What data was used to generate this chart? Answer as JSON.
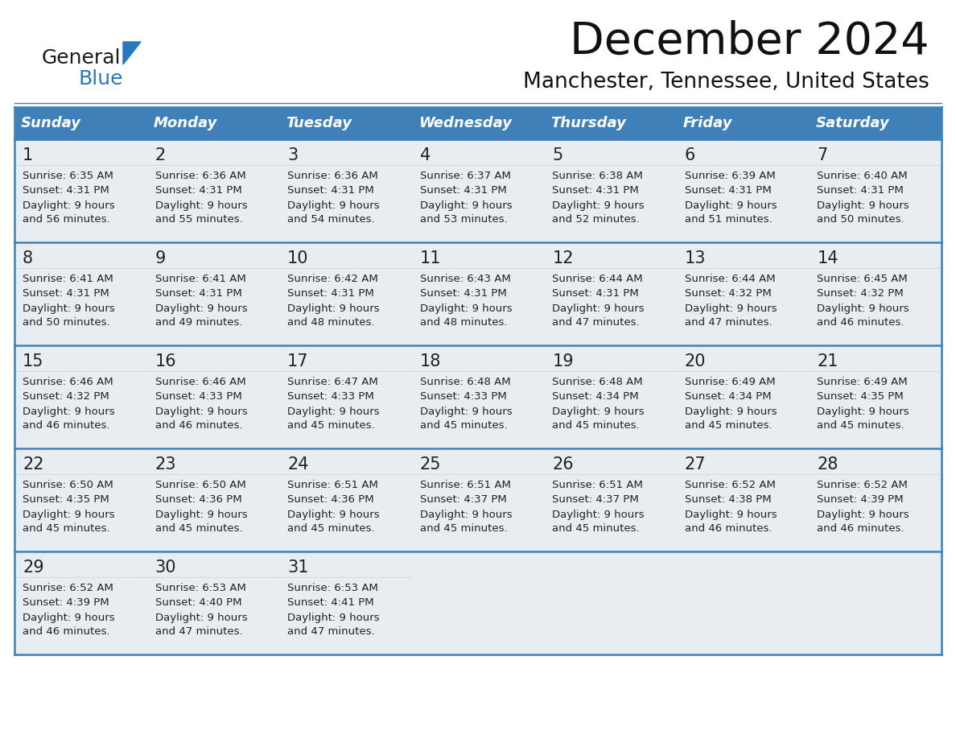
{
  "title": "December 2024",
  "subtitle": "Manchester, Tennessee, United States",
  "header_color": "#4080b8",
  "header_text_color": "#ffffff",
  "cell_day_bg": "#e8edf2",
  "cell_text_bg": "#ffffff",
  "row_separator_color": "#4080b8",
  "text_color": "#222222",
  "days_of_week": [
    "Sunday",
    "Monday",
    "Tuesday",
    "Wednesday",
    "Thursday",
    "Friday",
    "Saturday"
  ],
  "weeks": [
    [
      {
        "day": "1",
        "sunrise": "6:35 AM",
        "sunset": "4:31 PM",
        "daylight_h": "9 hours",
        "daylight_m": "and 56 minutes."
      },
      {
        "day": "2",
        "sunrise": "6:36 AM",
        "sunset": "4:31 PM",
        "daylight_h": "9 hours",
        "daylight_m": "and 55 minutes."
      },
      {
        "day": "3",
        "sunrise": "6:36 AM",
        "sunset": "4:31 PM",
        "daylight_h": "9 hours",
        "daylight_m": "and 54 minutes."
      },
      {
        "day": "4",
        "sunrise": "6:37 AM",
        "sunset": "4:31 PM",
        "daylight_h": "9 hours",
        "daylight_m": "and 53 minutes."
      },
      {
        "day": "5",
        "sunrise": "6:38 AM",
        "sunset": "4:31 PM",
        "daylight_h": "9 hours",
        "daylight_m": "and 52 minutes."
      },
      {
        "day": "6",
        "sunrise": "6:39 AM",
        "sunset": "4:31 PM",
        "daylight_h": "9 hours",
        "daylight_m": "and 51 minutes."
      },
      {
        "day": "7",
        "sunrise": "6:40 AM",
        "sunset": "4:31 PM",
        "daylight_h": "9 hours",
        "daylight_m": "and 50 minutes."
      }
    ],
    [
      {
        "day": "8",
        "sunrise": "6:41 AM",
        "sunset": "4:31 PM",
        "daylight_h": "9 hours",
        "daylight_m": "and 50 minutes."
      },
      {
        "day": "9",
        "sunrise": "6:41 AM",
        "sunset": "4:31 PM",
        "daylight_h": "9 hours",
        "daylight_m": "and 49 minutes."
      },
      {
        "day": "10",
        "sunrise": "6:42 AM",
        "sunset": "4:31 PM",
        "daylight_h": "9 hours",
        "daylight_m": "and 48 minutes."
      },
      {
        "day": "11",
        "sunrise": "6:43 AM",
        "sunset": "4:31 PM",
        "daylight_h": "9 hours",
        "daylight_m": "and 48 minutes."
      },
      {
        "day": "12",
        "sunrise": "6:44 AM",
        "sunset": "4:31 PM",
        "daylight_h": "9 hours",
        "daylight_m": "and 47 minutes."
      },
      {
        "day": "13",
        "sunrise": "6:44 AM",
        "sunset": "4:32 PM",
        "daylight_h": "9 hours",
        "daylight_m": "and 47 minutes."
      },
      {
        "day": "14",
        "sunrise": "6:45 AM",
        "sunset": "4:32 PM",
        "daylight_h": "9 hours",
        "daylight_m": "and 46 minutes."
      }
    ],
    [
      {
        "day": "15",
        "sunrise": "6:46 AM",
        "sunset": "4:32 PM",
        "daylight_h": "9 hours",
        "daylight_m": "and 46 minutes."
      },
      {
        "day": "16",
        "sunrise": "6:46 AM",
        "sunset": "4:33 PM",
        "daylight_h": "9 hours",
        "daylight_m": "and 46 minutes."
      },
      {
        "day": "17",
        "sunrise": "6:47 AM",
        "sunset": "4:33 PM",
        "daylight_h": "9 hours",
        "daylight_m": "and 45 minutes."
      },
      {
        "day": "18",
        "sunrise": "6:48 AM",
        "sunset": "4:33 PM",
        "daylight_h": "9 hours",
        "daylight_m": "and 45 minutes."
      },
      {
        "day": "19",
        "sunrise": "6:48 AM",
        "sunset": "4:34 PM",
        "daylight_h": "9 hours",
        "daylight_m": "and 45 minutes."
      },
      {
        "day": "20",
        "sunrise": "6:49 AM",
        "sunset": "4:34 PM",
        "daylight_h": "9 hours",
        "daylight_m": "and 45 minutes."
      },
      {
        "day": "21",
        "sunrise": "6:49 AM",
        "sunset": "4:35 PM",
        "daylight_h": "9 hours",
        "daylight_m": "and 45 minutes."
      }
    ],
    [
      {
        "day": "22",
        "sunrise": "6:50 AM",
        "sunset": "4:35 PM",
        "daylight_h": "9 hours",
        "daylight_m": "and 45 minutes."
      },
      {
        "day": "23",
        "sunrise": "6:50 AM",
        "sunset": "4:36 PM",
        "daylight_h": "9 hours",
        "daylight_m": "and 45 minutes."
      },
      {
        "day": "24",
        "sunrise": "6:51 AM",
        "sunset": "4:36 PM",
        "daylight_h": "9 hours",
        "daylight_m": "and 45 minutes."
      },
      {
        "day": "25",
        "sunrise": "6:51 AM",
        "sunset": "4:37 PM",
        "daylight_h": "9 hours",
        "daylight_m": "and 45 minutes."
      },
      {
        "day": "26",
        "sunrise": "6:51 AM",
        "sunset": "4:37 PM",
        "daylight_h": "9 hours",
        "daylight_m": "and 45 minutes."
      },
      {
        "day": "27",
        "sunrise": "6:52 AM",
        "sunset": "4:38 PM",
        "daylight_h": "9 hours",
        "daylight_m": "and 46 minutes."
      },
      {
        "day": "28",
        "sunrise": "6:52 AM",
        "sunset": "4:39 PM",
        "daylight_h": "9 hours",
        "daylight_m": "and 46 minutes."
      }
    ],
    [
      {
        "day": "29",
        "sunrise": "6:52 AM",
        "sunset": "4:39 PM",
        "daylight_h": "9 hours",
        "daylight_m": "and 46 minutes."
      },
      {
        "day": "30",
        "sunrise": "6:53 AM",
        "sunset": "4:40 PM",
        "daylight_h": "9 hours",
        "daylight_m": "and 47 minutes."
      },
      {
        "day": "31",
        "sunrise": "6:53 AM",
        "sunset": "4:41 PM",
        "daylight_h": "9 hours",
        "daylight_m": "and 47 minutes."
      },
      null,
      null,
      null,
      null
    ]
  ],
  "logo_general_color": "#1a1a1a",
  "logo_blue_color": "#2878c0",
  "fig_width": 11.88,
  "fig_height": 9.18,
  "dpi": 100
}
